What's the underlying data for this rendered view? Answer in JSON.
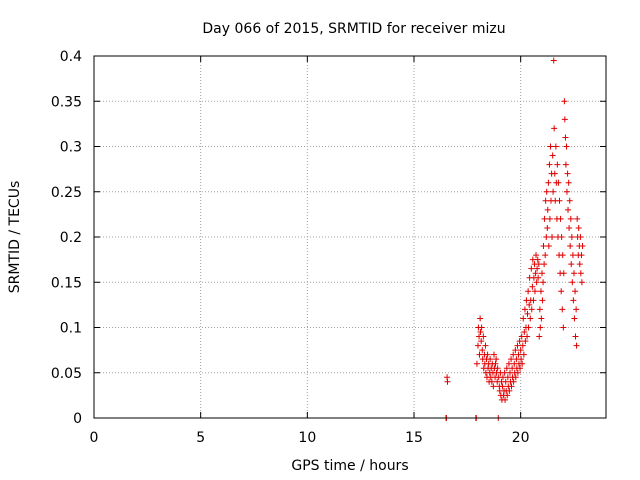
{
  "chart_data": {
    "type": "scatter",
    "title": "Day 066 of 2015, SRMTID for receiver mizu",
    "xlabel": "GPS time / hours",
    "ylabel": "SRMTID / TECUs",
    "xlim": [
      0,
      24
    ],
    "ylim": [
      0,
      0.4
    ],
    "xticks": [
      0,
      5,
      10,
      15,
      20
    ],
    "xtick_labels": [
      "0",
      "5",
      "10",
      "15",
      "20"
    ],
    "yticks": [
      0,
      0.05,
      0.1,
      0.15,
      0.2,
      0.25,
      0.3,
      0.35,
      0.4
    ],
    "ytick_labels": [
      "0",
      "0.05",
      "0.1",
      "0.15",
      "0.2",
      "0.25",
      "0.3",
      "0.35",
      "0.4"
    ],
    "grid": true,
    "marker": "plus",
    "color": "#e00000",
    "series": [
      {
        "name": "SRMTID",
        "points": [
          [
            16.5,
            0.0
          ],
          [
            16.52,
            0.0
          ],
          [
            16.55,
            0.045
          ],
          [
            16.57,
            0.04
          ],
          [
            17.9,
            0.0
          ],
          [
            17.92,
            0.0
          ],
          [
            17.95,
            0.06
          ],
          [
            18.0,
            0.08
          ],
          [
            18.02,
            0.1
          ],
          [
            18.05,
            0.09
          ],
          [
            18.07,
            0.07
          ],
          [
            18.1,
            0.11
          ],
          [
            18.12,
            0.095
          ],
          [
            18.15,
            0.085
          ],
          [
            18.17,
            0.1
          ],
          [
            18.2,
            0.075
          ],
          [
            18.22,
            0.065
          ],
          [
            18.25,
            0.09
          ],
          [
            18.27,
            0.055
          ],
          [
            18.3,
            0.07
          ],
          [
            18.32,
            0.06
          ],
          [
            18.35,
            0.08
          ],
          [
            18.37,
            0.05
          ],
          [
            18.4,
            0.065
          ],
          [
            18.42,
            0.045
          ],
          [
            18.45,
            0.07
          ],
          [
            18.47,
            0.055
          ],
          [
            18.5,
            0.06
          ],
          [
            18.52,
            0.04
          ],
          [
            18.55,
            0.05
          ],
          [
            18.57,
            0.065
          ],
          [
            18.6,
            0.045
          ],
          [
            18.62,
            0.055
          ],
          [
            18.65,
            0.04
          ],
          [
            18.67,
            0.06
          ],
          [
            18.7,
            0.05
          ],
          [
            18.72,
            0.035
          ],
          [
            18.75,
            0.07
          ],
          [
            18.77,
            0.055
          ],
          [
            18.8,
            0.045
          ],
          [
            18.82,
            0.06
          ],
          [
            18.85,
            0.065
          ],
          [
            18.87,
            0.05
          ],
          [
            18.9,
            0.04
          ],
          [
            18.92,
            0.055
          ],
          [
            18.95,
            0.0
          ],
          [
            18.97,
            0.045
          ],
          [
            19.0,
            0.035
          ],
          [
            19.02,
            0.03
          ],
          [
            19.05,
            0.05
          ],
          [
            19.07,
            0.025
          ],
          [
            19.1,
            0.04
          ],
          [
            19.12,
            0.02
          ],
          [
            19.15,
            0.035
          ],
          [
            19.17,
            0.045
          ],
          [
            19.2,
            0.025
          ],
          [
            19.22,
            0.03
          ],
          [
            19.25,
            0.05
          ],
          [
            19.27,
            0.02
          ],
          [
            19.3,
            0.04
          ],
          [
            19.32,
            0.03
          ],
          [
            19.35,
            0.055
          ],
          [
            19.37,
            0.025
          ],
          [
            19.4,
            0.045
          ],
          [
            19.42,
            0.035
          ],
          [
            19.45,
            0.06
          ],
          [
            19.47,
            0.03
          ],
          [
            19.5,
            0.05
          ],
          [
            19.52,
            0.04
          ],
          [
            19.55,
            0.065
          ],
          [
            19.57,
            0.035
          ],
          [
            19.6,
            0.055
          ],
          [
            19.62,
            0.045
          ],
          [
            19.65,
            0.07
          ],
          [
            19.67,
            0.04
          ],
          [
            19.7,
            0.06
          ],
          [
            19.72,
            0.05
          ],
          [
            19.75,
            0.075
          ],
          [
            19.77,
            0.045
          ],
          [
            19.8,
            0.065
          ],
          [
            19.82,
            0.055
          ],
          [
            19.85,
            0.08
          ],
          [
            19.87,
            0.05
          ],
          [
            19.9,
            0.07
          ],
          [
            19.92,
            0.06
          ],
          [
            19.95,
            0.085
          ],
          [
            19.97,
            0.055
          ],
          [
            20.0,
            0.075
          ],
          [
            20.02,
            0.065
          ],
          [
            20.05,
            0.09
          ],
          [
            20.07,
            0.06
          ],
          [
            20.1,
            0.08
          ],
          [
            20.12,
            0.11
          ],
          [
            20.15,
            0.07
          ],
          [
            20.17,
            0.095
          ],
          [
            20.2,
            0.12
          ],
          [
            20.22,
            0.085
          ],
          [
            20.25,
            0.1
          ],
          [
            20.27,
            0.13
          ],
          [
            20.3,
            0.09
          ],
          [
            20.32,
            0.115
          ],
          [
            20.35,
            0.14
          ],
          [
            20.37,
            0.1
          ],
          [
            20.4,
            0.125
          ],
          [
            20.42,
            0.155
          ],
          [
            20.45,
            0.11
          ],
          [
            20.47,
            0.13
          ],
          [
            20.5,
            0.165
          ],
          [
            20.52,
            0.12
          ],
          [
            20.55,
            0.145
          ],
          [
            20.57,
            0.175
          ],
          [
            20.6,
            0.13
          ],
          [
            20.62,
            0.155
          ],
          [
            20.65,
            0.17
          ],
          [
            20.67,
            0.14
          ],
          [
            20.7,
            0.16
          ],
          [
            20.72,
            0.18
          ],
          [
            20.75,
            0.15
          ],
          [
            20.77,
            0.165
          ],
          [
            20.8,
            0.175
          ],
          [
            20.82,
            0.155
          ],
          [
            20.85,
            0.17
          ],
          [
            20.87,
            0.09
          ],
          [
            20.9,
            0.12
          ],
          [
            20.92,
            0.1
          ],
          [
            20.95,
            0.14
          ],
          [
            20.97,
            0.11
          ],
          [
            21.0,
            0.16
          ],
          [
            21.02,
            0.13
          ],
          [
            21.05,
            0.15
          ],
          [
            21.07,
            0.19
          ],
          [
            21.1,
            0.17
          ],
          [
            21.12,
            0.22
          ],
          [
            21.15,
            0.18
          ],
          [
            21.17,
            0.24
          ],
          [
            21.2,
            0.2
          ],
          [
            21.22,
            0.25
          ],
          [
            21.25,
            0.21
          ],
          [
            21.27,
            0.23
          ],
          [
            21.3,
            0.26
          ],
          [
            21.32,
            0.19
          ],
          [
            21.35,
            0.28
          ],
          [
            21.37,
            0.22
          ],
          [
            21.4,
            0.3
          ],
          [
            21.42,
            0.24
          ],
          [
            21.45,
            0.27
          ],
          [
            21.47,
            0.2
          ],
          [
            21.5,
            0.29
          ],
          [
            21.52,
            0.25
          ],
          [
            21.55,
            0.395
          ],
          [
            21.57,
            0.32
          ],
          [
            21.6,
            0.27
          ],
          [
            21.62,
            0.24
          ],
          [
            21.65,
            0.3
          ],
          [
            21.67,
            0.26
          ],
          [
            21.7,
            0.22
          ],
          [
            21.72,
            0.28
          ],
          [
            21.75,
            0.2
          ],
          [
            21.77,
            0.26
          ],
          [
            21.8,
            0.18
          ],
          [
            21.82,
            0.24
          ],
          [
            21.85,
            0.16
          ],
          [
            21.87,
            0.22
          ],
          [
            21.9,
            0.14
          ],
          [
            21.92,
            0.2
          ],
          [
            21.95,
            0.12
          ],
          [
            21.97,
            0.18
          ],
          [
            22.0,
            0.1
          ],
          [
            22.02,
            0.16
          ],
          [
            22.05,
            0.35
          ],
          [
            22.07,
            0.33
          ],
          [
            22.1,
            0.31
          ],
          [
            22.12,
            0.28
          ],
          [
            22.15,
            0.3
          ],
          [
            22.17,
            0.25
          ],
          [
            22.2,
            0.27
          ],
          [
            22.22,
            0.23
          ],
          [
            22.25,
            0.26
          ],
          [
            22.27,
            0.21
          ],
          [
            22.3,
            0.24
          ],
          [
            22.32,
            0.19
          ],
          [
            22.35,
            0.22
          ],
          [
            22.37,
            0.17
          ],
          [
            22.4,
            0.2
          ],
          [
            22.42,
            0.15
          ],
          [
            22.45,
            0.18
          ],
          [
            22.47,
            0.13
          ],
          [
            22.5,
            0.16
          ],
          [
            22.52,
            0.11
          ],
          [
            22.55,
            0.14
          ],
          [
            22.57,
            0.09
          ],
          [
            22.6,
            0.12
          ],
          [
            22.62,
            0.08
          ],
          [
            22.65,
            0.22
          ],
          [
            22.67,
            0.2
          ],
          [
            22.7,
            0.18
          ],
          [
            22.72,
            0.21
          ],
          [
            22.75,
            0.19
          ],
          [
            22.77,
            0.17
          ],
          [
            22.8,
            0.2
          ],
          [
            22.82,
            0.16
          ],
          [
            22.85,
            0.18
          ],
          [
            22.87,
            0.15
          ],
          [
            22.9,
            0.19
          ]
        ]
      }
    ]
  }
}
